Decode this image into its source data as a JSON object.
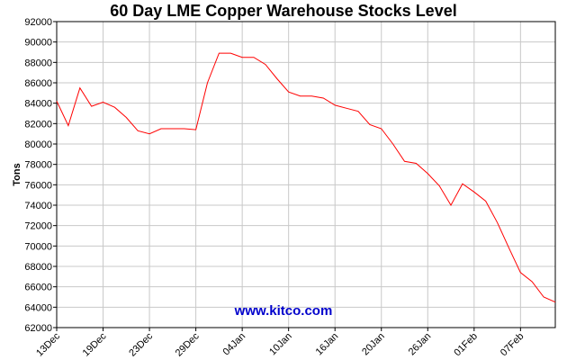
{
  "chart_data": {
    "type": "line",
    "title": "60 Day LME Copper Warehouse Stocks Level",
    "ylabel": "Tons",
    "xlabel": "",
    "watermark": "www.kitco.com",
    "ylim": [
      62000,
      92000
    ],
    "y_ticks": [
      "62000",
      "64000",
      "66000",
      "68000",
      "70000",
      "72000",
      "74000",
      "76000",
      "78000",
      "80000",
      "82000",
      "84000",
      "86000",
      "88000",
      "90000",
      "92000"
    ],
    "x_ticks": [
      "13Dec",
      "19Dec",
      "23Dec",
      "29Dec",
      "04Jan",
      "10Jan",
      "16Jan",
      "20Jan",
      "26Jan",
      "01Feb",
      "07Feb"
    ],
    "x_tick_index": [
      0,
      4,
      8,
      12,
      16,
      20,
      24,
      28,
      32,
      36,
      40
    ],
    "grid": true,
    "series": [
      {
        "color": "#ff0000",
        "values": [
          84200,
          81800,
          85500,
          83700,
          84100,
          83600,
          82600,
          81300,
          81000,
          81500,
          81500,
          81500,
          81400,
          86000,
          88900,
          88900,
          88500,
          88500,
          87800,
          86400,
          85100,
          84700,
          84700,
          84500,
          83800,
          83500,
          83200,
          81900,
          81500,
          80000,
          78300,
          78100,
          77100,
          75900,
          74000,
          76100,
          75300,
          74400,
          72300,
          69800,
          67400,
          66500,
          65000,
          64500
        ]
      }
    ]
  }
}
